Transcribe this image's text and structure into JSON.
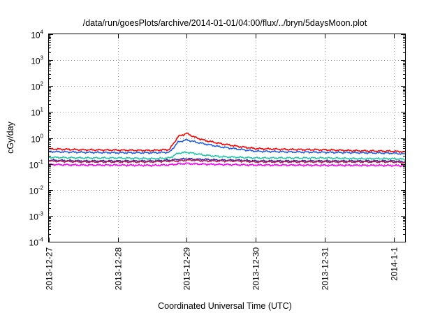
{
  "chart_data": {
    "type": "line",
    "title": "/data/run/goesPlots/archive/2014-01-01/04:00/flux/../bryn/5daysMoon.plot",
    "xlabel": "Coordinated Universal Time (UTC)",
    "ylabel": "cGy/day",
    "yscale": "log",
    "ylim": [
      0.0001,
      10000
    ],
    "y_tick_base": "10",
    "y_tick_exponents": [
      "-4",
      "-3",
      "-2",
      "-1",
      "0",
      "1",
      "2",
      "3",
      "4"
    ],
    "x_ticks": [
      "2013-12-27",
      "2013-12-28",
      "2013-12-29",
      "2013-12-30",
      "2013-12-31",
      "2014-1-1"
    ],
    "xlim": [
      "2013-12-27 00:00",
      "2014-01-01 04:00"
    ],
    "grid": true,
    "legend": "none",
    "x": [
      "2013-12-27 00:00",
      "2013-12-27 12:00",
      "2013-12-28 00:00",
      "2013-12-28 12:00",
      "2013-12-28 18:00",
      "2013-12-28 21:00",
      "2013-12-29 00:00",
      "2013-12-29 03:00",
      "2013-12-29 06:00",
      "2013-12-29 12:00",
      "2013-12-29 18:00",
      "2013-12-30 00:00",
      "2013-12-30 12:00",
      "2013-12-31 00:00",
      "2013-12-31 12:00",
      "2014-01-01 00:00",
      "2014-01-01 04:00"
    ],
    "series": [
      {
        "color": "#ff0000",
        "values": [
          0.38,
          0.35,
          0.34,
          0.33,
          0.36,
          1.15,
          1.5,
          1.05,
          0.82,
          0.6,
          0.47,
          0.39,
          0.36,
          0.35,
          0.32,
          0.31,
          0.29
        ]
      },
      {
        "color": "#1f5fe6",
        "values": [
          0.3,
          0.28,
          0.27,
          0.27,
          0.28,
          0.7,
          0.85,
          0.7,
          0.6,
          0.45,
          0.37,
          0.31,
          0.29,
          0.28,
          0.27,
          0.26,
          0.24
        ]
      },
      {
        "color": "#1fc7a6",
        "values": [
          0.18,
          0.17,
          0.17,
          0.16,
          0.17,
          0.26,
          0.28,
          0.25,
          0.22,
          0.19,
          0.18,
          0.17,
          0.17,
          0.17,
          0.16,
          0.16,
          0.15
        ]
      },
      {
        "color": "#2a2ab0",
        "values": [
          0.14,
          0.13,
          0.13,
          0.13,
          0.14,
          0.15,
          0.16,
          0.15,
          0.15,
          0.14,
          0.14,
          0.13,
          0.13,
          0.13,
          0.13,
          0.13,
          0.12
        ]
      },
      {
        "color": "#c01850",
        "values": [
          0.13,
          0.12,
          0.12,
          0.12,
          0.13,
          0.13,
          0.14,
          0.14,
          0.13,
          0.13,
          0.13,
          0.12,
          0.12,
          0.12,
          0.12,
          0.12,
          0.11
        ]
      },
      {
        "color": "#ff00ff",
        "values": [
          0.095,
          0.09,
          0.09,
          0.088,
          0.092,
          0.1,
          0.105,
          0.1,
          0.098,
          0.095,
          0.093,
          0.09,
          0.09,
          0.088,
          0.088,
          0.087,
          0.085
        ]
      }
    ]
  }
}
